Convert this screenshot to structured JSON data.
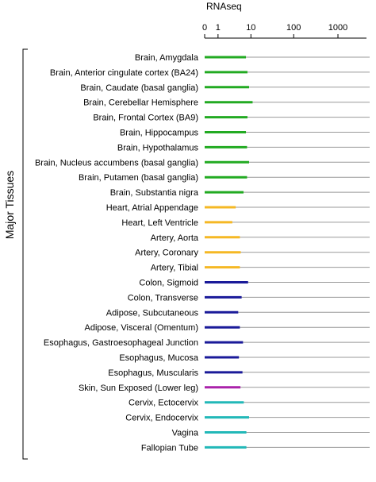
{
  "chart_data": {
    "type": "bar",
    "orientation": "horizontal",
    "title": "",
    "xlabel": "RNAseq",
    "ylabel": "Major Tissues",
    "xscale": "log1p",
    "xlim": [
      0,
      1000
    ],
    "xticks": [
      "0",
      "1",
      "10",
      "100",
      "1000"
    ],
    "xtick_values": [
      0,
      1,
      10,
      100,
      1000
    ],
    "grid": false,
    "categories": [
      "Brain, Amygdala",
      "Brain, Anterior cingulate cortex (BA24)",
      "Brain, Caudate (basal ganglia)",
      "Brain, Cerebellar Hemisphere",
      "Brain, Frontal Cortex (BA9)",
      "Brain, Hippocampus",
      "Brain, Hypothalamus",
      "Brain, Nucleus accumbens (basal ganglia)",
      "Brain, Putamen (basal ganglia)",
      "Brain, Substantia nigra",
      "Heart, Atrial Appendage",
      "Heart, Left Ventricle",
      "Artery, Aorta",
      "Artery, Coronary",
      "Artery, Tibial",
      "Colon, Sigmoid",
      "Colon, Transverse",
      "Adipose, Subcutaneous",
      "Adipose, Visceral (Omentum)",
      "Esophagus, Gastroesophageal Junction",
      "Esophagus, Mucosa",
      "Esophagus, Muscularis",
      "Skin, Sun Exposed (Lower leg)",
      "Cervix, Ectocervix",
      "Cervix, Endocervix",
      "Vagina",
      "Fallopian Tube"
    ],
    "values": [
      7.5,
      8.2,
      9.0,
      11.0,
      8.2,
      7.5,
      8.0,
      9.0,
      8.0,
      6.5,
      4.0,
      3.2,
      5.2,
      5.5,
      5.2,
      8.5,
      5.8,
      4.7,
      5.2,
      6.3,
      4.9,
      6.1,
      5.4,
      6.6,
      9.0,
      7.7,
      7.7
    ],
    "bar_colors": [
      "#22aa22",
      "#22aa22",
      "#22aa22",
      "#22aa22",
      "#22aa22",
      "#22aa22",
      "#22aa22",
      "#22aa22",
      "#22aa22",
      "#22aa22",
      "#f5b824",
      "#f5b824",
      "#f5b824",
      "#f5b824",
      "#f5b824",
      "#1a1a99",
      "#1a1a99",
      "#1a1a99",
      "#1a1a99",
      "#1a1a99",
      "#1a1a99",
      "#1a1a99",
      "#aa22aa",
      "#22b8b8",
      "#22b8b8",
      "#22b8b8",
      "#22b8b8"
    ],
    "row_line_color": "#999999"
  }
}
